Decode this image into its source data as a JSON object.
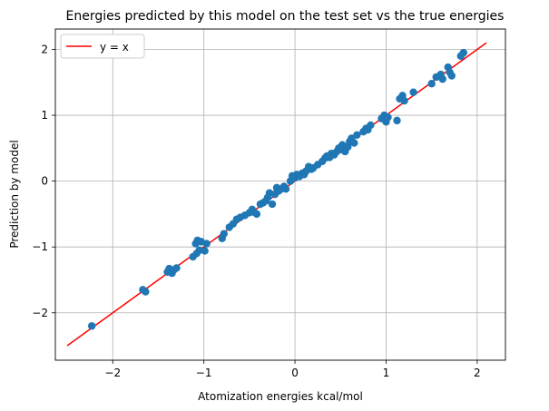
{
  "chart_data": {
    "type": "scatter",
    "title": "Energies predicted by this model on the test set vs the true energies",
    "xlabel": "Atomization energies kcal/mol",
    "ylabel": "Prediction by model",
    "xlim": [
      -2.63,
      2.31
    ],
    "ylim": [
      -2.72,
      2.31
    ],
    "xticks": [
      -2,
      -1,
      0,
      1,
      2
    ],
    "yticks": [
      -2,
      -1,
      0,
      1,
      2
    ],
    "grid": true,
    "legend_position": "top-left",
    "colors": {
      "points": "#1f77b4",
      "line": "#ff0000"
    },
    "series": [
      {
        "type": "line",
        "name": "y = x",
        "color": "#ff0000",
        "x": [
          -2.5,
          2.1
        ],
        "y": [
          -2.5,
          2.1
        ]
      },
      {
        "type": "scatter",
        "color": "#1f77b4",
        "x": [
          -2.23,
          -1.67,
          -1.64,
          -1.4,
          -1.38,
          -1.35,
          -1.33,
          -1.3,
          -1.12,
          -1.09,
          -1.08,
          -1.07,
          -1.05,
          -1.03,
          -0.99,
          -0.97,
          -0.8,
          -0.78,
          -0.72,
          -0.68,
          -0.64,
          -0.6,
          -0.55,
          -0.5,
          -0.47,
          -0.45,
          -0.42,
          -0.38,
          -0.35,
          -0.32,
          -0.3,
          -0.28,
          -0.25,
          -0.22,
          -0.2,
          -0.18,
          -0.15,
          -0.12,
          -0.1,
          -0.05,
          -0.03,
          0.0,
          0.02,
          0.05,
          0.08,
          0.1,
          0.12,
          0.15,
          0.18,
          0.2,
          0.25,
          0.3,
          0.33,
          0.35,
          0.38,
          0.4,
          0.43,
          0.46,
          0.48,
          0.5,
          0.52,
          0.55,
          0.58,
          0.6,
          0.62,
          0.65,
          0.68,
          0.75,
          0.78,
          0.8,
          0.83,
          0.95,
          0.98,
          1.0,
          1.02,
          1.12,
          1.15,
          1.18,
          1.2,
          1.3,
          1.5,
          1.55,
          1.6,
          1.62,
          1.68,
          1.7,
          1.72,
          1.82,
          1.85
        ],
        "y": [
          -2.2,
          -1.65,
          -1.68,
          -1.38,
          -1.33,
          -1.4,
          -1.35,
          -1.32,
          -1.15,
          -0.95,
          -1.1,
          -0.9,
          -1.05,
          -0.92,
          -1.06,
          -0.95,
          -0.87,
          -0.8,
          -0.7,
          -0.65,
          -0.58,
          -0.55,
          -0.52,
          -0.48,
          -0.43,
          -0.47,
          -0.5,
          -0.35,
          -0.33,
          -0.3,
          -0.25,
          -0.18,
          -0.35,
          -0.2,
          -0.1,
          -0.15,
          -0.12,
          -0.08,
          -0.12,
          0.0,
          0.08,
          0.05,
          0.1,
          0.07,
          0.12,
          0.1,
          0.15,
          0.22,
          0.18,
          0.2,
          0.25,
          0.3,
          0.35,
          0.38,
          0.36,
          0.42,
          0.4,
          0.45,
          0.5,
          0.48,
          0.55,
          0.45,
          0.52,
          0.6,
          0.65,
          0.58,
          0.7,
          0.75,
          0.8,
          0.78,
          0.85,
          0.95,
          1.0,
          0.9,
          0.97,
          0.92,
          1.25,
          1.3,
          1.22,
          1.35,
          1.48,
          1.58,
          1.62,
          1.55,
          1.73,
          1.65,
          1.6,
          1.9,
          1.95
        ]
      }
    ]
  }
}
